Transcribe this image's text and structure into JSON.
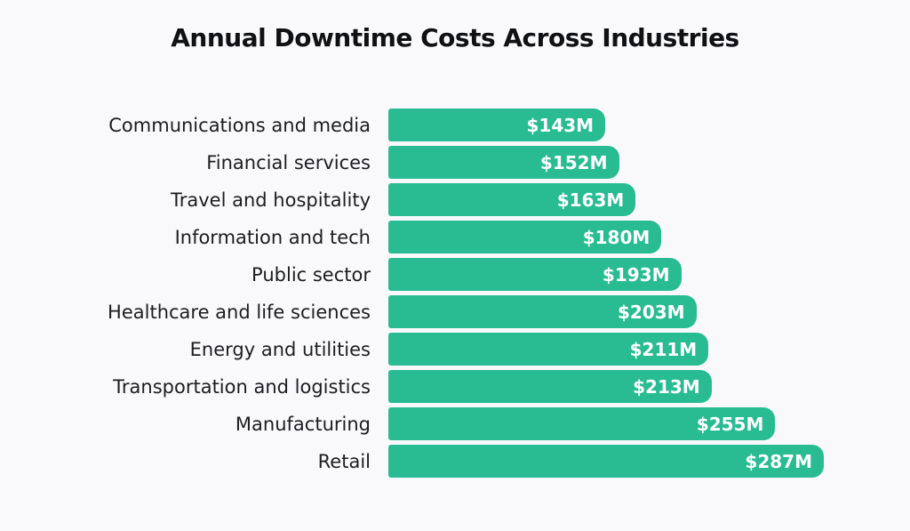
{
  "chart_data": {
    "type": "bar",
    "orientation": "horizontal",
    "title": "Annual Downtime Costs Across Industries",
    "categories": [
      "Communications and media",
      "Financial services",
      "Travel and hospitality",
      "Information and tech",
      "Public sector",
      "Healthcare and life sciences",
      "Energy and utilities",
      "Transportation and logistics",
      "Manufacturing",
      "Retail"
    ],
    "values": [
      143,
      152,
      163,
      180,
      193,
      203,
      211,
      213,
      255,
      287
    ],
    "value_labels": [
      "$143M",
      "$152M",
      "$163M",
      "$180M",
      "$193M",
      "$203M",
      "$211M",
      "$213M",
      "$255M",
      "$287M"
    ],
    "xlabel": "",
    "ylabel": "",
    "xlim": [
      0,
      287
    ],
    "grid": false,
    "legend": false,
    "value_label_position": "inside-end",
    "bar_color": "#29bc93",
    "value_label_color": "#ffffff",
    "category_label_color": "#1c1d21",
    "title_color": "#101114",
    "background_color": "#f9f9fb"
  }
}
